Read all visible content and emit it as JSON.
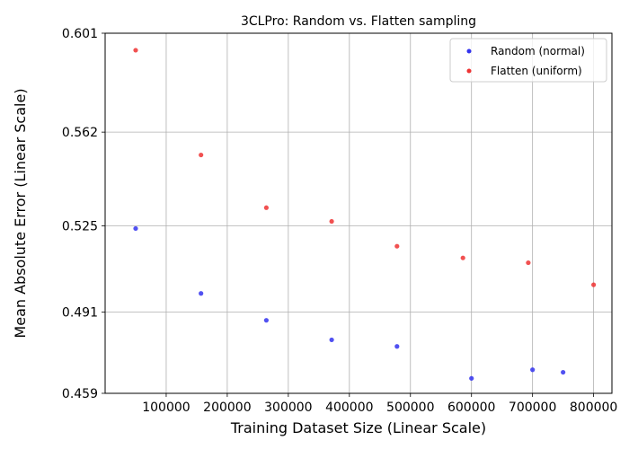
{
  "chart_data": {
    "type": "scatter",
    "title": "3CLPro: Random vs. Flatten sampling",
    "xlabel": "Training Dataset Size (Linear Scale)",
    "ylabel": "Mean Absolute Error (Linear Scale)",
    "xlim": [
      0,
      830000
    ],
    "ylim": [
      0.459,
      0.601
    ],
    "xticks": [
      100000,
      200000,
      300000,
      400000,
      500000,
      600000,
      700000,
      800000
    ],
    "xtick_labels": [
      "100000",
      "200000",
      "300000",
      "400000",
      "500000",
      "600000",
      "700000",
      "800000"
    ],
    "yticks": [
      0.459,
      0.491,
      0.525,
      0.562,
      0.601
    ],
    "ytick_labels": [
      "0.459",
      "0.491",
      "0.525",
      "0.562",
      "0.601"
    ],
    "grid": true,
    "legend_position": "top-right",
    "series": [
      {
        "name": "Random (normal)",
        "color": "#3333ee",
        "points": [
          {
            "x": 50000,
            "y": 0.524
          },
          {
            "x": 157000,
            "y": 0.4984
          },
          {
            "x": 264000,
            "y": 0.4878
          },
          {
            "x": 371000,
            "y": 0.4801
          },
          {
            "x": 478000,
            "y": 0.4775
          },
          {
            "x": 600000,
            "y": 0.4649
          },
          {
            "x": 700000,
            "y": 0.4683
          },
          {
            "x": 750000,
            "y": 0.4673
          }
        ]
      },
      {
        "name": "Flatten (uniform)",
        "color": "#ee3333",
        "points": [
          {
            "x": 50000,
            "y": 0.5943
          },
          {
            "x": 157000,
            "y": 0.553
          },
          {
            "x": 264000,
            "y": 0.5322
          },
          {
            "x": 371000,
            "y": 0.5268
          },
          {
            "x": 478000,
            "y": 0.517
          },
          {
            "x": 586000,
            "y": 0.5124
          },
          {
            "x": 693000,
            "y": 0.5105
          },
          {
            "x": 800000,
            "y": 0.5018
          }
        ]
      }
    ]
  }
}
